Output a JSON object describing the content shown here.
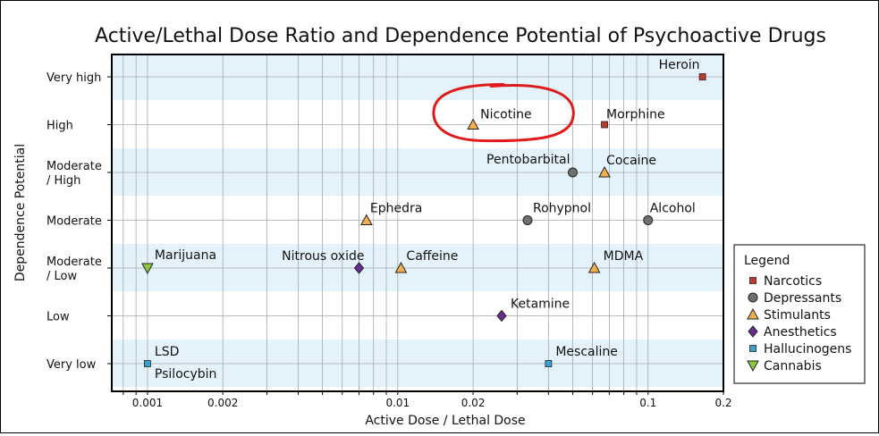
{
  "chart_data": {
    "type": "scatter",
    "title": "Active/Lethal Dose Ratio and Dependence Potential of Psychoactive Drugs",
    "xlabel": "Active Dose / Lethal Dose",
    "ylabel": "Dependence Potential",
    "x_scale": "log",
    "xlim": [
      0.00072,
      0.2
    ],
    "x_ticks": [
      {
        "value": 0.001,
        "label": "0.001"
      },
      {
        "value": 0.002,
        "label": "0.002"
      },
      {
        "value": 0.01,
        "label": "0.01"
      },
      {
        "value": 0.02,
        "label": "0.02"
      },
      {
        "value": 0.1,
        "label": "0.1"
      },
      {
        "value": 0.2,
        "label": "0.2"
      }
    ],
    "y_categories": [
      {
        "label": [
          "Very low"
        ]
      },
      {
        "label": [
          "Low"
        ]
      },
      {
        "label": [
          "Moderate",
          "/ Low"
        ]
      },
      {
        "label": [
          "Moderate"
        ]
      },
      {
        "label": [
          "Moderate",
          "/ High"
        ]
      },
      {
        "label": [
          "High"
        ]
      },
      {
        "label": [
          "Very high"
        ]
      }
    ],
    "grid": true,
    "legend_position": "right",
    "legend_title": "Legend",
    "series": [
      {
        "name": "Narcotics",
        "marker": "square",
        "color": "#c0392b",
        "points": [
          {
            "label": "Heroin",
            "x": 0.165,
            "y": 6
          },
          {
            "label": "Morphine",
            "x": 0.067,
            "y": 5
          }
        ]
      },
      {
        "name": "Depressants",
        "marker": "circle",
        "color": "#707070",
        "points": [
          {
            "label": "Pentobarbital",
            "x": 0.05,
            "y": 4
          },
          {
            "label": "Rohypnol",
            "x": 0.033,
            "y": 3
          },
          {
            "label": "Alcohol",
            "x": 0.1,
            "y": 3
          }
        ]
      },
      {
        "name": "Stimulants",
        "marker": "triangle",
        "color": "#f0b050",
        "points": [
          {
            "label": "Nicotine",
            "x": 0.02,
            "y": 5
          },
          {
            "label": "Cocaine",
            "x": 0.067,
            "y": 4
          },
          {
            "label": "Ephedra",
            "x": 0.0075,
            "y": 3
          },
          {
            "label": "Caffeine",
            "x": 0.0103,
            "y": 2
          },
          {
            "label": "MDMA",
            "x": 0.061,
            "y": 2
          }
        ]
      },
      {
        "name": "Anesthetics",
        "marker": "diamond",
        "color": "#6a2c91",
        "points": [
          {
            "label": "Nitrous oxide",
            "x": 0.007,
            "y": 2
          },
          {
            "label": "Ketamine",
            "x": 0.026,
            "y": 1
          }
        ]
      },
      {
        "name": "Hallucinogens",
        "marker": "square",
        "color": "#3aa0d0",
        "points": [
          {
            "label": "LSD",
            "x": 0.001,
            "y": 0
          },
          {
            "label": "Psilocybin",
            "x": 0.001,
            "y": 0
          },
          {
            "label": "Mescaline",
            "x": 0.04,
            "y": 0
          }
        ]
      },
      {
        "name": "Cannabis",
        "marker": "triangle-down",
        "color": "#8dc63f",
        "points": [
          {
            "label": "Marijuana",
            "x": 0.001,
            "y": 2
          }
        ]
      }
    ],
    "annotations": [
      {
        "type": "hand-drawn-circle",
        "target": "Nicotine",
        "color": "#e01b1b"
      }
    ]
  }
}
